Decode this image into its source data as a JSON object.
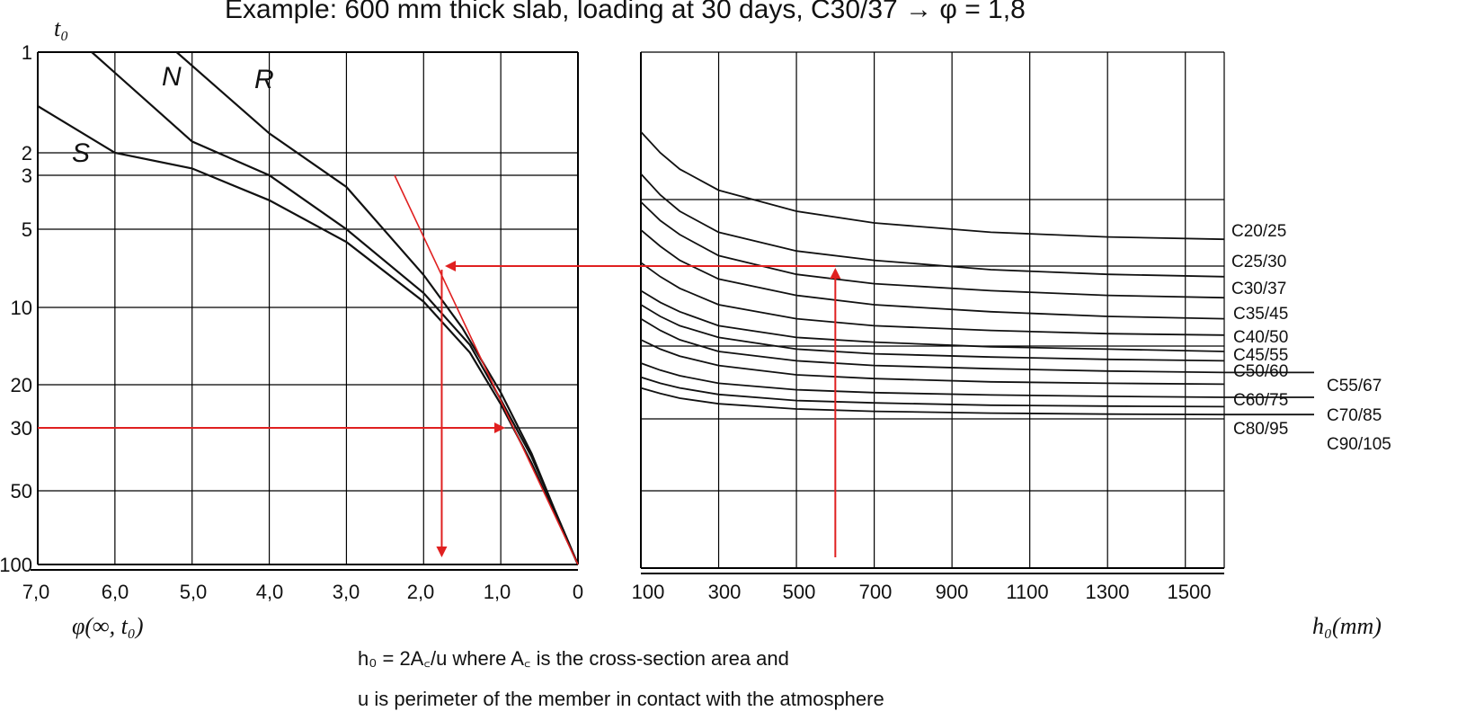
{
  "chart_data": {
    "type": "line",
    "title": "Example: 600 mm thick slab, loading at 30 days, C30/37  →  φ = 1,8",
    "left_panel": {
      "y_axis_label": "t₀",
      "y_ticks": [
        "1",
        "2",
        "3",
        "5",
        "10",
        "20",
        "30",
        "50",
        "100"
      ],
      "x_axis_label": "φ(∞, t₀)",
      "x_ticks": [
        "7,0",
        "6,0",
        "5,0",
        "4,0",
        "3,0",
        "2,0",
        "1,0",
        "0"
      ],
      "series": [
        {
          "name": "S",
          "points": [
            [
              7.0,
              1.45
            ],
            [
              6.0,
              2.0
            ],
            [
              5.0,
              2.65
            ],
            [
              4.0,
              3.8
            ],
            [
              3.0,
              5.6
            ],
            [
              2.0,
              9.5
            ],
            [
              1.4,
              15.0
            ],
            [
              1.0,
              24.0
            ],
            [
              0.6,
              40.0
            ],
            [
              0.3,
              62.0
            ],
            [
              0.0,
              100.0
            ]
          ]
        },
        {
          "name": "N",
          "points": [
            [
              6.3,
              1.0
            ],
            [
              5.0,
              1.85
            ],
            [
              4.0,
              3.0
            ],
            [
              3.0,
              5.0
            ],
            [
              2.0,
              8.8
            ],
            [
              1.4,
              14.0
            ],
            [
              1.0,
              23.0
            ],
            [
              0.6,
              38.0
            ],
            [
              0.3,
              60.0
            ],
            [
              0.0,
              100.0
            ]
          ]
        },
        {
          "name": "R",
          "points": [
            [
              5.2,
              1.0
            ],
            [
              4.0,
              1.75
            ],
            [
              3.0,
              3.35
            ],
            [
              2.0,
              7.5
            ],
            [
              1.5,
              12.0
            ],
            [
              1.0,
              21.5
            ],
            [
              0.6,
              37.0
            ],
            [
              0.3,
              60.0
            ],
            [
              0.0,
              100.0
            ]
          ]
        }
      ]
    },
    "right_panel": {
      "x_axis_label": "h₀(mm)",
      "x_ticks": [
        "100",
        "300",
        "500",
        "700",
        "900",
        "1100",
        "1300",
        "1500"
      ],
      "x_range": [
        100,
        1600
      ],
      "series": [
        {
          "name": "C20/25",
          "values": [
            [
              100,
              0.8
            ],
            [
              150,
              1.25
            ],
            [
              200,
              1.6
            ],
            [
              300,
              2.05
            ],
            [
              500,
              2.5
            ],
            [
              700,
              2.75
            ],
            [
              1000,
              2.95
            ],
            [
              1300,
              3.05
            ],
            [
              1600,
              3.1
            ]
          ]
        },
        {
          "name": "C25/30",
          "values": [
            [
              100,
              1.7
            ],
            [
              150,
              2.15
            ],
            [
              200,
              2.5
            ],
            [
              300,
              2.95
            ],
            [
              500,
              3.35
            ],
            [
              700,
              3.55
            ],
            [
              1000,
              3.75
            ],
            [
              1300,
              3.85
            ],
            [
              1600,
              3.9
            ]
          ]
        },
        {
          "name": "C30/37",
          "values": [
            [
              100,
              2.3
            ],
            [
              150,
              2.7
            ],
            [
              200,
              3.0
            ],
            [
              300,
              3.45
            ],
            [
              500,
              3.85
            ],
            [
              700,
              4.05
            ],
            [
              1000,
              4.2
            ],
            [
              1300,
              4.3
            ],
            [
              1600,
              4.35
            ]
          ]
        },
        {
          "name": "C35/45",
          "values": [
            [
              100,
              2.9
            ],
            [
              150,
              3.25
            ],
            [
              200,
              3.55
            ],
            [
              300,
              3.95
            ],
            [
              500,
              4.3
            ],
            [
              700,
              4.5
            ],
            [
              1000,
              4.65
            ],
            [
              1300,
              4.75
            ],
            [
              1600,
              4.8
            ]
          ]
        },
        {
          "name": "C40/50",
          "values": [
            [
              100,
              3.6
            ],
            [
              150,
              3.9
            ],
            [
              200,
              4.15
            ],
            [
              300,
              4.5
            ],
            [
              500,
              4.8
            ],
            [
              700,
              4.95
            ],
            [
              1000,
              5.05
            ],
            [
              1300,
              5.12
            ],
            [
              1600,
              5.15
            ]
          ]
        },
        {
          "name": "C45/55",
          "values": [
            [
              100,
              4.2
            ],
            [
              150,
              4.45
            ],
            [
              200,
              4.65
            ],
            [
              300,
              4.95
            ],
            [
              500,
              5.2
            ],
            [
              700,
              5.3
            ],
            [
              1000,
              5.4
            ],
            [
              1300,
              5.45
            ],
            [
              1600,
              5.5
            ]
          ]
        },
        {
          "name": "C50/60",
          "values": [
            [
              100,
              4.5
            ],
            [
              150,
              4.75
            ],
            [
              200,
              4.95
            ],
            [
              300,
              5.2
            ],
            [
              500,
              5.45
            ],
            [
              700,
              5.55
            ],
            [
              1000,
              5.62
            ],
            [
              1300,
              5.67
            ],
            [
              1600,
              5.7
            ]
          ]
        },
        {
          "name": "C55/67",
          "values": [
            [
              100,
              4.8
            ],
            [
              150,
              5.05
            ],
            [
              200,
              5.25
            ],
            [
              300,
              5.5
            ],
            [
              500,
              5.7
            ],
            [
              700,
              5.8
            ],
            [
              1000,
              5.87
            ],
            [
              1300,
              5.92
            ],
            [
              1600,
              5.95
            ]
          ]
        },
        {
          "name": "C60/75",
          "values": [
            [
              100,
              5.25
            ],
            [
              150,
              5.45
            ],
            [
              200,
              5.6
            ],
            [
              300,
              5.8
            ],
            [
              500,
              6.0
            ],
            [
              700,
              6.08
            ],
            [
              1000,
              6.15
            ],
            [
              1300,
              6.18
            ],
            [
              1600,
              6.2
            ]
          ]
        },
        {
          "name": "C70/85",
          "values": [
            [
              100,
              5.75
            ],
            [
              150,
              5.9
            ],
            [
              200,
              6.02
            ],
            [
              300,
              6.18
            ],
            [
              500,
              6.32
            ],
            [
              700,
              6.38
            ],
            [
              1000,
              6.43
            ],
            [
              1300,
              6.46
            ],
            [
              1600,
              6.48
            ]
          ]
        },
        {
          "name": "C80/95",
          "values": [
            [
              100,
              6.05
            ],
            [
              150,
              6.18
            ],
            [
              200,
              6.28
            ],
            [
              300,
              6.42
            ],
            [
              500,
              6.55
            ],
            [
              700,
              6.6
            ],
            [
              1000,
              6.65
            ],
            [
              1300,
              6.67
            ],
            [
              1600,
              6.68
            ]
          ]
        },
        {
          "name": "C90/105",
          "values": [
            [
              100,
              6.28
            ],
            [
              150,
              6.4
            ],
            [
              200,
              6.5
            ],
            [
              300,
              6.62
            ],
            [
              500,
              6.73
            ],
            [
              700,
              6.78
            ],
            [
              1000,
              6.82
            ],
            [
              1300,
              6.84
            ],
            [
              1600,
              6.85
            ]
          ]
        }
      ]
    },
    "example_path": {
      "t0": 30,
      "h0": 600,
      "class": "C30/37",
      "phi": 1.8,
      "color": "#e02020"
    },
    "footnote": {
      "line1": "h₀ = 2A꜀/u  where A꜀ is the cross-section area and",
      "line2": "u is perimeter of the member in contact with the atmosphere"
    },
    "colors": {
      "curve": "#111111",
      "grid": "#000000",
      "highlight": "#e02020"
    }
  }
}
